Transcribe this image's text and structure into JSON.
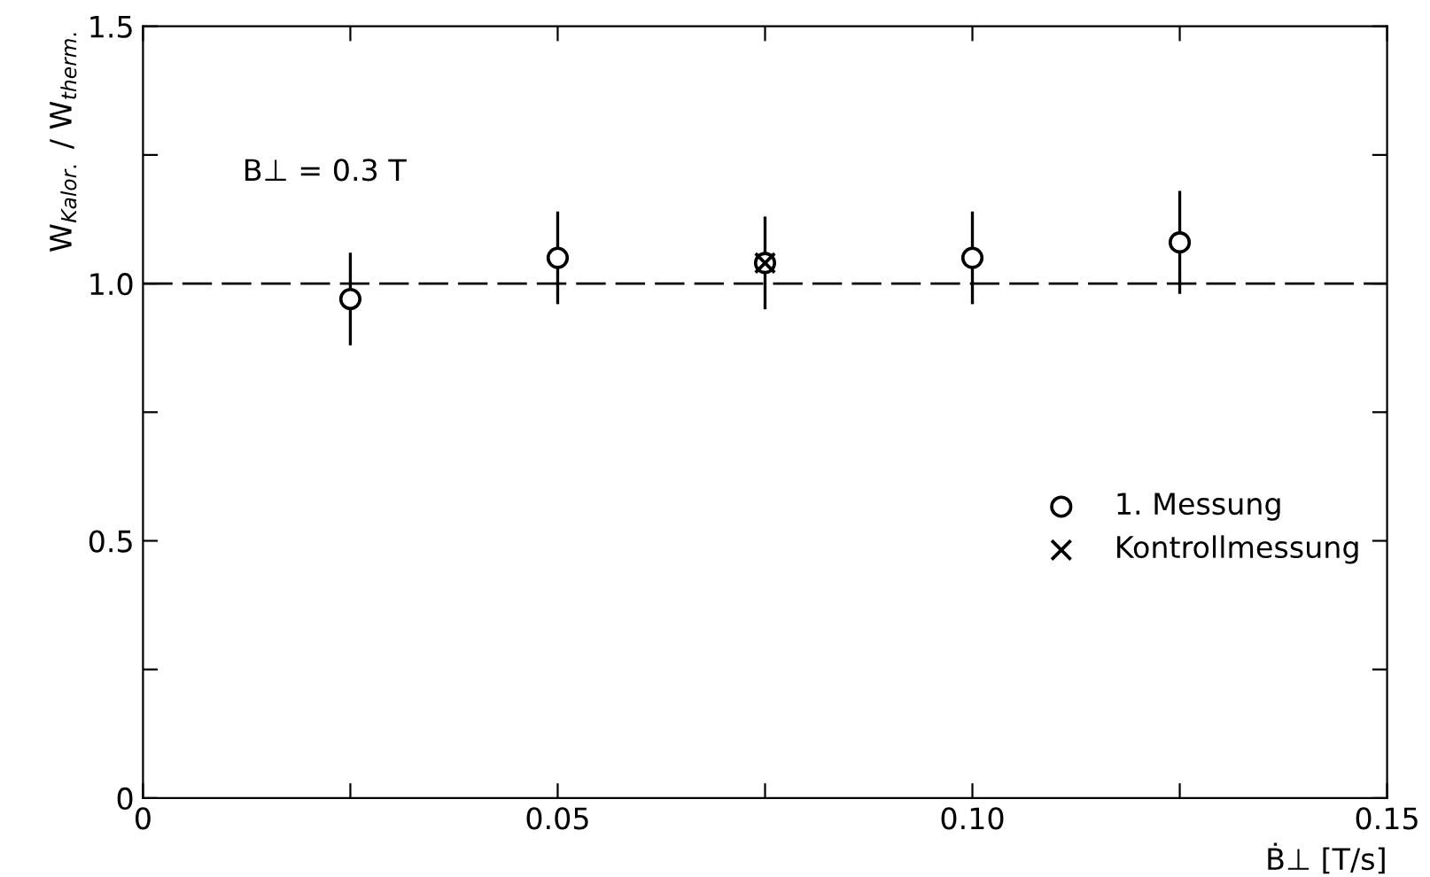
{
  "chart_data": {
    "type": "scatter",
    "xlabel": "Ḃ⊥ [T/s]",
    "ylabel": "W$_{Kalor.}$ / W$_{therm.}$",
    "series": [
      {
        "name": "1. Messung",
        "color": "#000000",
        "marker": "circle",
        "x": [
          0.025,
          0.05,
          0.075,
          0.1,
          0.125
        ],
        "values": [
          0.97,
          1.05,
          1.04,
          1.05,
          1.08
        ],
        "errors": [
          0.09,
          0.09,
          0.09,
          0.09,
          0.1
        ]
      },
      {
        "name": "Kontrollmessung",
        "color": "#000000",
        "marker": "cross",
        "x": [
          0.075
        ],
        "values": [
          1.04
        ]
      }
    ],
    "xlim": [
      0,
      0.15
    ],
    "ylim": [
      0,
      1.5
    ],
    "xticks": [
      0,
      0.05,
      {
        "value": 0.075,
        "label": null
      },
      {
        "value": 0.025,
        "label": null
      },
      "0.10",
      {
        "value": 0.125,
        "label": null
      },
      0.15
    ],
    "yticks": [
      0,
      {
        "value": 0.25,
        "label": null
      },
      0.5,
      {
        "value": 0.75,
        "label": null
      },
      "1.0",
      {
        "value": 1.25,
        "label": null
      },
      1.5
    ],
    "ref_lines": [
      {
        "axis": "y",
        "value": 1.0,
        "color": "#000000",
        "line_style": "dashed"
      }
    ],
    "annotations": [
      "B⊥ = 0.3 T"
    ],
    "legend": "right",
    "grid": false
  }
}
